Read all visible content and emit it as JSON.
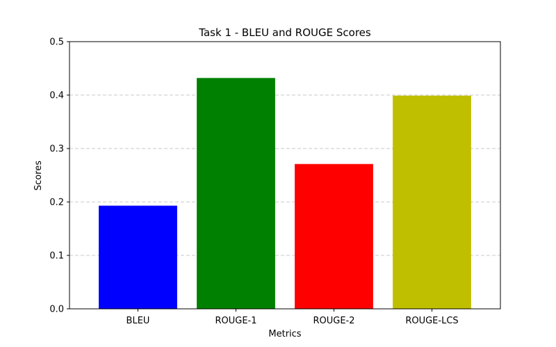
{
  "chart_data": {
    "type": "bar",
    "title": "Task 1 - BLEU and ROUGE Scores",
    "xlabel": "Metrics",
    "ylabel": "Scores",
    "categories": [
      "BLEU",
      "ROUGE-1",
      "ROUGE-2",
      "ROUGE-LCS"
    ],
    "values": [
      0.193,
      0.432,
      0.271,
      0.399
    ],
    "colors": [
      "#0000ff",
      "#008000",
      "#ff0000",
      "#bfbf00"
    ],
    "ylim": [
      0,
      0.5
    ],
    "yticks": [
      0.0,
      0.1,
      0.2,
      0.3,
      0.4,
      0.5
    ],
    "ytick_labels": [
      "0.0",
      "0.1",
      "0.2",
      "0.3",
      "0.4",
      "0.5"
    ],
    "grid": "y-dashed"
  }
}
